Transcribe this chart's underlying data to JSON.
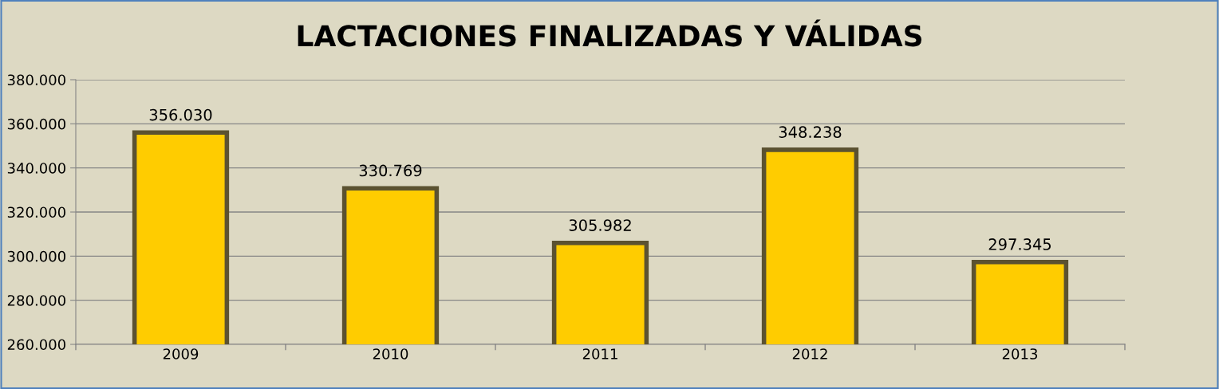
{
  "chart_data": {
    "type": "bar",
    "title": "LACTACIONES FINALIZADAS Y VÁLIDAS",
    "categories": [
      "2009",
      "2010",
      "2011",
      "2012",
      "2013"
    ],
    "values": [
      356030,
      330769,
      305982,
      348238,
      297345
    ],
    "value_labels": [
      "356.030",
      "330.769",
      "305.982",
      "348.238",
      "297.345"
    ],
    "color": "#ffcc00",
    "ylim": [
      260000,
      380000
    ],
    "yticks": [
      {
        "value": 260000,
        "label": "260.000"
      },
      {
        "value": 280000,
        "label": "280.000"
      },
      {
        "value": 300000,
        "label": "300.000"
      },
      {
        "value": 320000,
        "label": "320.000"
      },
      {
        "value": 340000,
        "label": "340.000"
      },
      {
        "value": 360000,
        "label": "360.000"
      },
      {
        "value": 380000,
        "label": "380.000"
      }
    ],
    "grid": "y",
    "legend": false
  }
}
